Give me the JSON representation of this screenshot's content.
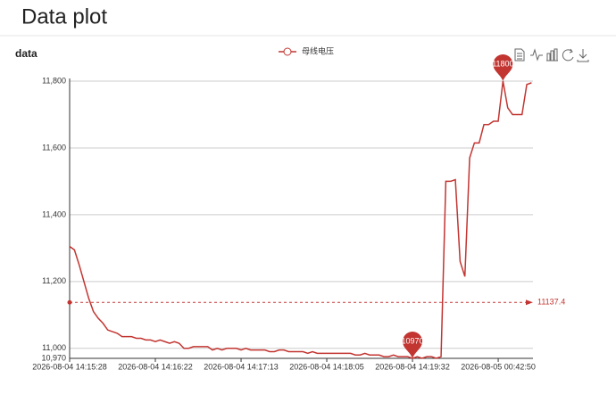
{
  "page_title": "Data plot",
  "chart_data": {
    "type": "line",
    "title": "data",
    "categories": [
      "2026-08-04 14:15:28",
      null,
      null,
      null,
      null,
      null,
      null,
      null,
      null,
      null,
      null,
      null,
      null,
      null,
      null,
      null,
      null,
      null,
      "2026-08-04 14:16:22",
      null,
      null,
      null,
      null,
      null,
      null,
      null,
      null,
      null,
      null,
      null,
      null,
      null,
      null,
      null,
      null,
      null,
      "2026-08-04 14:17:13",
      null,
      null,
      null,
      null,
      null,
      null,
      null,
      null,
      null,
      null,
      null,
      null,
      null,
      null,
      null,
      null,
      null,
      "2026-08-04 14:18:05",
      null,
      null,
      null,
      null,
      null,
      null,
      null,
      null,
      null,
      null,
      null,
      null,
      null,
      null,
      null,
      null,
      null,
      "2026-08-04 14:19:32",
      null,
      null,
      null,
      null,
      null,
      null,
      null,
      null,
      null,
      null,
      null,
      null,
      null,
      null,
      null,
      null,
      null,
      "2026-08-05 00:42:50",
      null,
      null,
      null,
      null,
      null,
      null,
      null
    ],
    "series": [
      {
        "name": "母线电压",
        "color": "#c23531",
        "values": [
          11305,
          11295,
          11250,
          11200,
          11150,
          11110,
          11090,
          11075,
          11055,
          11050,
          11045,
          11035,
          11035,
          11035,
          11030,
          11030,
          11025,
          11025,
          11020,
          11025,
          11020,
          11015,
          11020,
          11015,
          11000,
          11000,
          11005,
          11005,
          11005,
          11005,
          10995,
          11000,
          10995,
          11000,
          11000,
          11000,
          10995,
          11000,
          10995,
          10995,
          10995,
          10995,
          10990,
          10990,
          10995,
          10995,
          10990,
          10990,
          10990,
          10990,
          10985,
          10990,
          10985,
          10985,
          10985,
          10985,
          10985,
          10985,
          10985,
          10985,
          10980,
          10980,
          10985,
          10980,
          10980,
          10980,
          10975,
          10975,
          10980,
          10975,
          10975,
          10975,
          10970,
          10975,
          10970,
          10975,
          10975,
          10970,
          10975,
          11500,
          11500,
          11505,
          11260,
          11215,
          11570,
          11615,
          11615,
          11670,
          11670,
          11680,
          11680,
          11800,
          11720,
          11700,
          11700,
          11700,
          11790,
          11795
        ]
      }
    ],
    "ylim": [
      10970,
      11800
    ],
    "yticks": [
      {
        "value": 10970,
        "label": "10,970"
      },
      {
        "value": 11000,
        "label": "11,000"
      },
      {
        "value": 11200,
        "label": "11,200"
      },
      {
        "value": 11400,
        "label": "11,400"
      },
      {
        "value": 11600,
        "label": "11,600"
      },
      {
        "value": 11800,
        "label": "11,800"
      }
    ],
    "grid": true,
    "max_mark": 11800,
    "min_mark": 10970,
    "mean_line": 11137.4
  }
}
